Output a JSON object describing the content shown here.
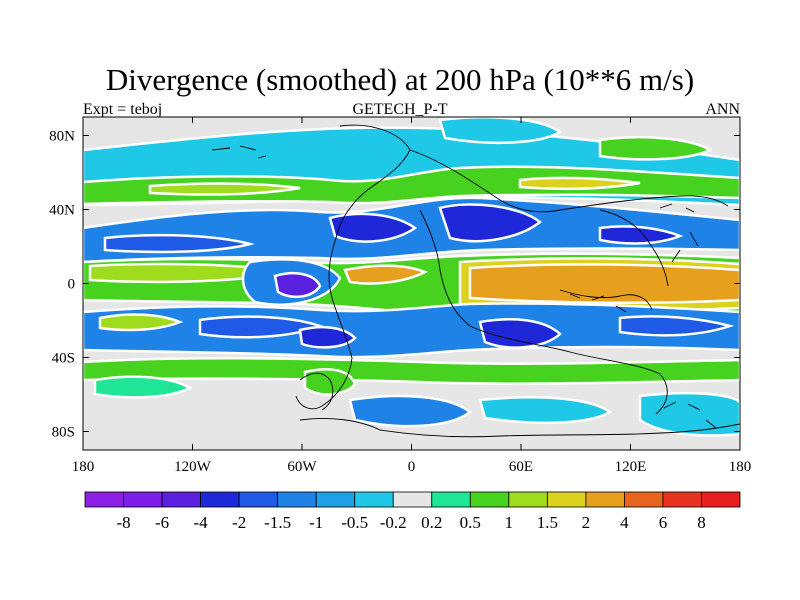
{
  "title": "Divergence (smoothed) at 200 hPa (10**6 m/s)",
  "subtitle_left": "Expt = teboj",
  "subtitle_center": "GETECH_P-T",
  "subtitle_right": "ANN",
  "axes": {
    "x_ticks": [
      "180",
      "120W",
      "60W",
      "0",
      "60E",
      "120E",
      "180"
    ],
    "y_ticks": [
      "80N",
      "40N",
      "0",
      "40S",
      "80S"
    ]
  },
  "colorbar": {
    "labels": [
      "-8",
      "-6",
      "-4",
      "-2",
      "-1.5",
      "-1",
      "-0.5",
      "-0.2",
      "0.2",
      "0.5",
      "1",
      "1.5",
      "2",
      "4",
      "6",
      "8"
    ],
    "colors": [
      "#8c1ee6",
      "#7a1ee8",
      "#5a20e0",
      "#1e28d8",
      "#1e5ae6",
      "#1e82e6",
      "#1ea0e6",
      "#1ec8e6",
      "#e6e6e6",
      "#1ee696",
      "#46d21e",
      "#a0dc1e",
      "#dcd21e",
      "#e6a01e",
      "#e6641e",
      "#e6321e",
      "#e61e1e"
    ]
  },
  "palette": {
    "neutral": "#e6e6e6",
    "strong_neg": "#1e28d8",
    "neg": "#1e5ae6",
    "mild_neg": "#1e82e6",
    "weak_neg": "#1ec8e6",
    "weak_pos": "#1ee696",
    "pos": "#46d21e",
    "mild_pos": "#a0dc1e",
    "strong_pos": "#dcd21e",
    "very_strong_pos": "#e6a01e",
    "extreme_neg": "#5a20e0"
  }
}
